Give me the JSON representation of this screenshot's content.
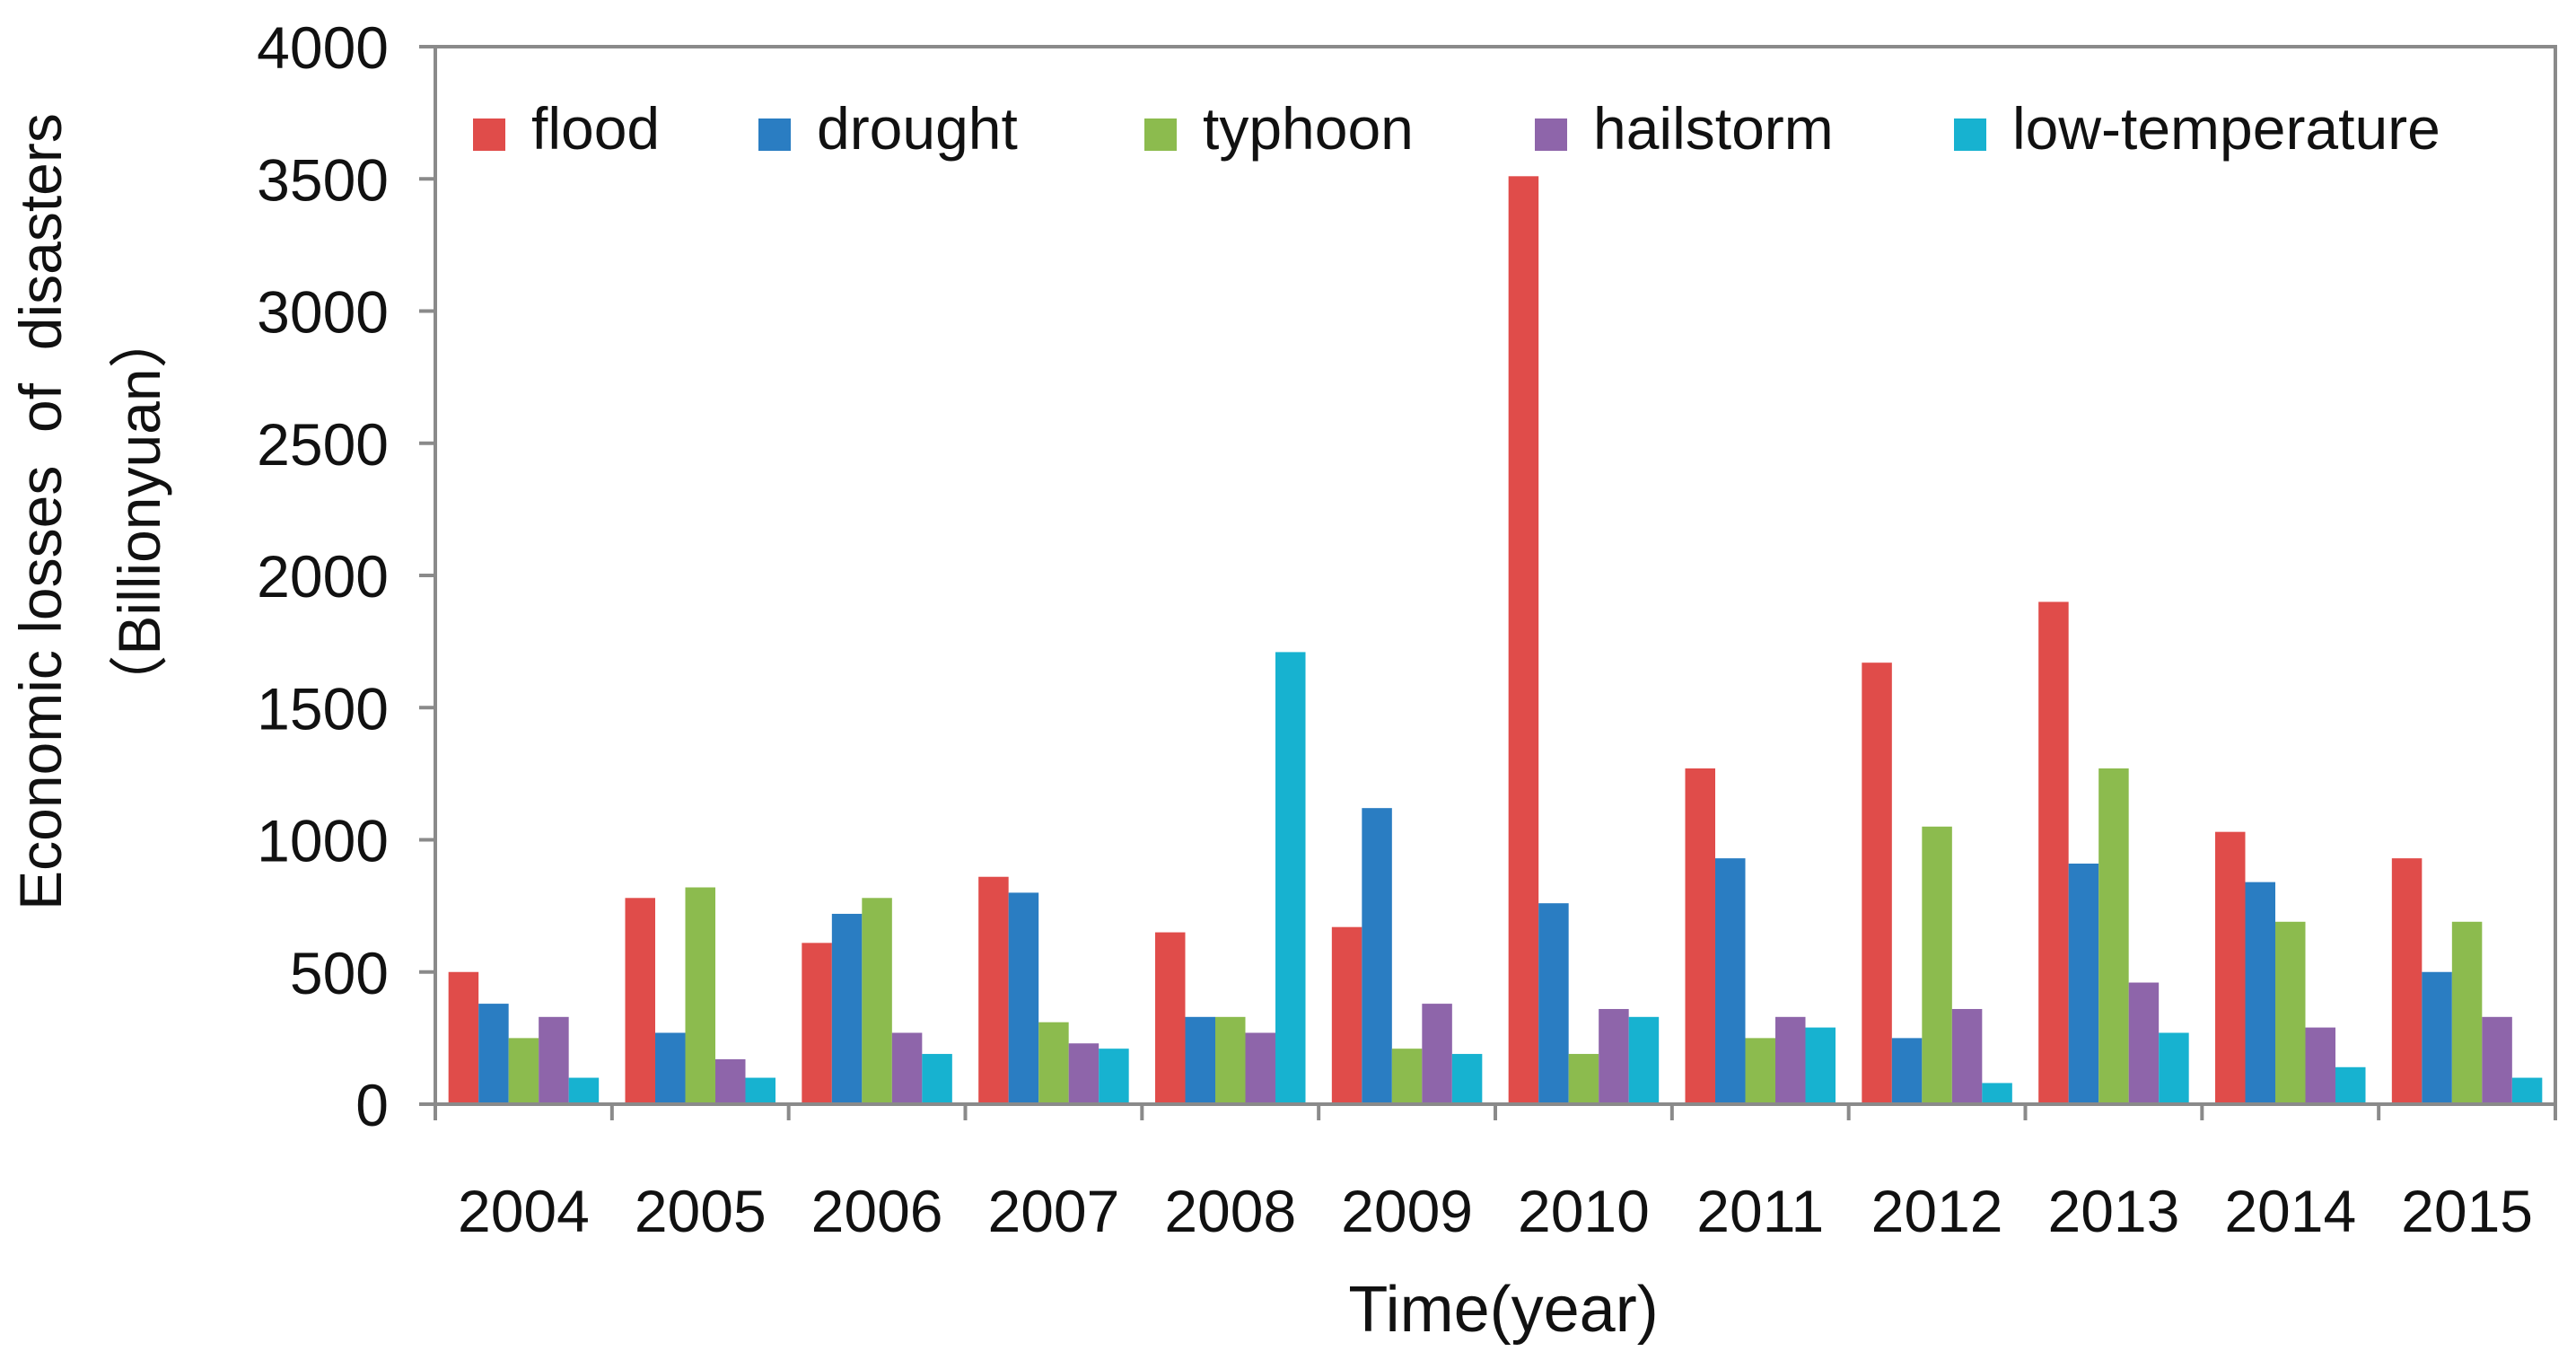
{
  "chart_data": {
    "type": "bar",
    "title": "",
    "xlabel": "Time(year)",
    "ylabel_line1": "Economic losses  of  disasters",
    "ylabel_line2": "（Billionyuan）",
    "ylim": [
      0,
      4000
    ],
    "yticks": [
      0,
      500,
      1000,
      1500,
      2000,
      2500,
      3000,
      3500,
      4000
    ],
    "grid": false,
    "legend_position": "top",
    "categories": [
      "2004",
      "2005",
      "2006",
      "2007",
      "2008",
      "2009",
      "2010",
      "2011",
      "2012",
      "2013",
      "2014",
      "2015"
    ],
    "series": [
      {
        "name": "flood",
        "color": "#E04C4A",
        "values": [
          500,
          780,
          610,
          860,
          650,
          670,
          3510,
          1270,
          1670,
          1900,
          1030,
          930
        ]
      },
      {
        "name": "drought",
        "color": "#2A7DC2",
        "values": [
          380,
          270,
          720,
          800,
          330,
          1120,
          760,
          930,
          250,
          910,
          840,
          500
        ]
      },
      {
        "name": "typhoon",
        "color": "#8CBB4E",
        "values": [
          250,
          820,
          780,
          310,
          330,
          210,
          190,
          250,
          1050,
          1270,
          690,
          690
        ]
      },
      {
        "name": "hailstorm",
        "color": "#8E65AA",
        "values": [
          330,
          170,
          270,
          230,
          270,
          380,
          360,
          330,
          360,
          460,
          290,
          330
        ]
      },
      {
        "name": "low-temperature",
        "color": "#17B2D0",
        "values": [
          100,
          100,
          190,
          210,
          1710,
          190,
          330,
          290,
          80,
          270,
          140,
          100
        ]
      }
    ]
  }
}
